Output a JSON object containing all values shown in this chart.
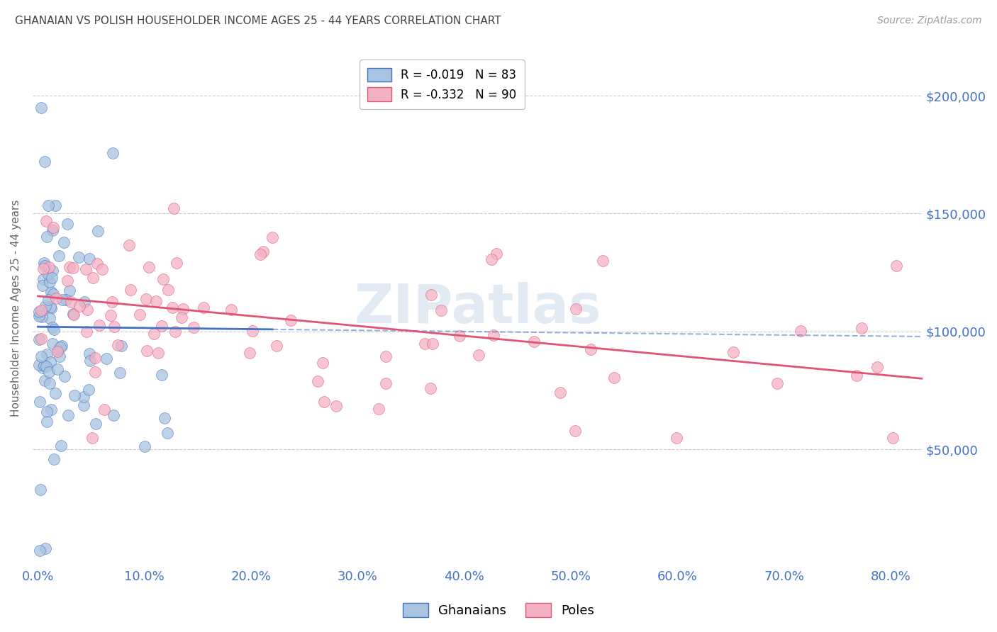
{
  "title": "GHANAIAN VS POLISH HOUSEHOLDER INCOME AGES 25 - 44 YEARS CORRELATION CHART",
  "source": "Source: ZipAtlas.com",
  "ylabel": "Householder Income Ages 25 - 44 years",
  "ytick_values": [
    50000,
    100000,
    150000,
    200000
  ],
  "ylim": [
    0,
    220000
  ],
  "xlim": [
    -0.005,
    0.83
  ],
  "watermark": "ZIPatlas",
  "R_ghanaian": -0.019,
  "N_ghanaian": 83,
  "R_polish": -0.332,
  "N_polish": 90,
  "scatter_color_ghanaian": "#a8c4e0",
  "scatter_edge_ghanaian": "#4472c4",
  "scatter_color_polish": "#f4b0c4",
  "scatter_edge_polish": "#e05577",
  "line_color_ghanaian": "#4472c4",
  "line_color_polish": "#e05577",
  "background_color": "#ffffff",
  "grid_color": "#cccccc",
  "title_color": "#444444",
  "tick_color": "#4472c4",
  "gh_line_x0": 0.0,
  "gh_line_y0": 102000,
  "gh_line_x1": 0.25,
  "gh_line_y1": 100000,
  "po_line_x0": 0.0,
  "po_line_y0": 115000,
  "po_line_x1": 0.83,
  "po_line_y1": 80000
}
